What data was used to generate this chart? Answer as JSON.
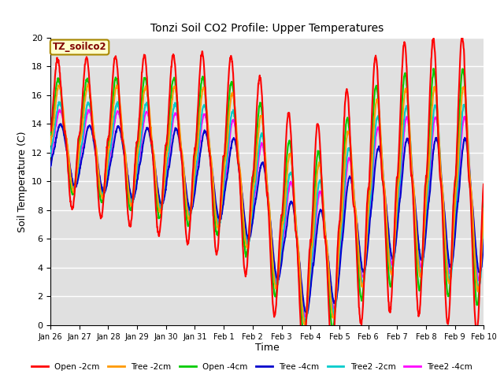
{
  "title": "Tonzi Soil CO2 Profile: Upper Temperatures",
  "xlabel": "Time",
  "ylabel": "Soil Temperature (C)",
  "ylim": [
    0,
    20
  ],
  "annotation": "TZ_soilco2",
  "plot_bg": "#e0e0e0",
  "fig_bg": "#ffffff",
  "series": [
    {
      "label": "Open -2cm",
      "color": "#ff0000",
      "lw": 1.5
    },
    {
      "label": "Tree -2cm",
      "color": "#ff9900",
      "lw": 1.5
    },
    {
      "label": "Open -4cm",
      "color": "#00cc00",
      "lw": 1.5
    },
    {
      "label": "Tree -4cm",
      "color": "#0000cc",
      "lw": 1.5
    },
    {
      "label": "Tree2 -2cm",
      "color": "#00cccc",
      "lw": 1.5
    },
    {
      "label": "Tree2 -4cm",
      "color": "#ff00ff",
      "lw": 1.5
    }
  ],
  "xtick_labels": [
    "Jan 26",
    "Jan 27",
    "Jan 28",
    "Jan 29",
    "Jan 30",
    "Jan 31",
    "Feb 1",
    "Feb 2",
    "Feb 3",
    "Feb 4",
    "Feb 5",
    "Feb 6",
    "Feb 7",
    "Feb 8",
    "Feb 9",
    "Feb 10"
  ],
  "yticks": [
    0,
    2,
    4,
    6,
    8,
    10,
    12,
    14,
    16,
    18,
    20
  ]
}
